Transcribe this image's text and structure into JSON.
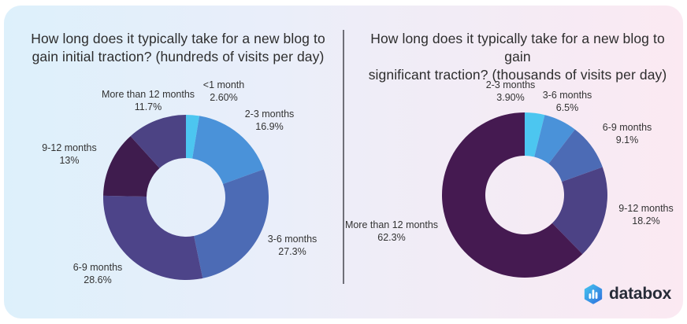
{
  "card": {
    "gradient_left": "#ddf0fb",
    "gradient_right": "#fbe9f2",
    "divider_color": "#6f6f78"
  },
  "charts": [
    {
      "title_line1": "How long does it typically take for a new blog to",
      "title_line2": "gain initial traction? (hundreds of visits per day)",
      "slices": [
        {
          "label": "<1 month",
          "pct_text": "2.60%",
          "value": 2.6,
          "color": "#4CC6F0"
        },
        {
          "label": "2-3 months",
          "pct_text": "16.9%",
          "value": 16.9,
          "color": "#4A92D9"
        },
        {
          "label": "3-6 months",
          "pct_text": "27.3%",
          "value": 27.3,
          "color": "#4C6BB5"
        },
        {
          "label": "6-9 months",
          "pct_text": "28.6%",
          "value": 28.6,
          "color": "#4D4489"
        },
        {
          "label": "9-12 months",
          "pct_text": "13%",
          "value": 13,
          "color": "#3F1C4E"
        },
        {
          "label": "More than 12 months",
          "pct_text": "11.7%",
          "value": 11.7,
          "color": "#4C4384"
        }
      ]
    },
    {
      "title_line1": "How long does it typically take for a new blog to gain",
      "title_line2": "significant traction? (thousands of visits per day)",
      "slices": [
        {
          "label": "2-3 months",
          "pct_text": "3.90%",
          "value": 3.9,
          "color": "#4CC6F0"
        },
        {
          "label": "3-6 months",
          "pct_text": "6.5%",
          "value": 6.5,
          "color": "#4A92D9"
        },
        {
          "label": "6-9 months",
          "pct_text": "9.1%",
          "value": 9.1,
          "color": "#4C6BB5"
        },
        {
          "label": "9-12 months",
          "pct_text": "18.2%",
          "value": 18.2,
          "color": "#4C4285"
        },
        {
          "label": "More than 12 months",
          "pct_text": "62.3%",
          "value": 62.3,
          "color": "#451A51"
        }
      ]
    }
  ],
  "logo": {
    "text": "databox",
    "icon_name": "databox-bars-icon",
    "icon_gradient_top": "#45C2EE",
    "icon_gradient_bottom": "#2F72DE"
  },
  "chart_data": [
    {
      "type": "pie",
      "subtype": "donut",
      "title": "How long does it typically take for a new blog to gain initial traction? (hundreds of visits per day)",
      "categories": [
        "<1 month",
        "2-3 months",
        "3-6 months",
        "6-9 months",
        "9-12 months",
        "More than 12 months"
      ],
      "values": [
        2.6,
        16.9,
        27.3,
        28.6,
        13,
        11.7
      ],
      "data_labels": [
        "2.60%",
        "16.9%",
        "27.3%",
        "28.6%",
        "13%",
        "11.7%"
      ],
      "colors": [
        "#4CC6F0",
        "#4A92D9",
        "#4C6BB5",
        "#4D4489",
        "#3F1C4E",
        "#4C4384"
      ],
      "start_angle_deg": 0,
      "direction": "clockwise",
      "legend": "none",
      "label_position": "outside"
    },
    {
      "type": "pie",
      "subtype": "donut",
      "title": "How long does it typically take for a new blog to gain significant traction? (thousands of visits per day)",
      "categories": [
        "2-3 months",
        "3-6 months",
        "6-9 months",
        "9-12 months",
        "More than 12 months"
      ],
      "values": [
        3.9,
        6.5,
        9.1,
        18.2,
        62.3
      ],
      "data_labels": [
        "3.90%",
        "6.5%",
        "9.1%",
        "18.2%",
        "62.3%"
      ],
      "colors": [
        "#4CC6F0",
        "#4A92D9",
        "#4C6BB5",
        "#4C4285",
        "#451A51"
      ],
      "start_angle_deg": 0,
      "direction": "clockwise",
      "legend": "none",
      "label_position": "outside"
    }
  ]
}
